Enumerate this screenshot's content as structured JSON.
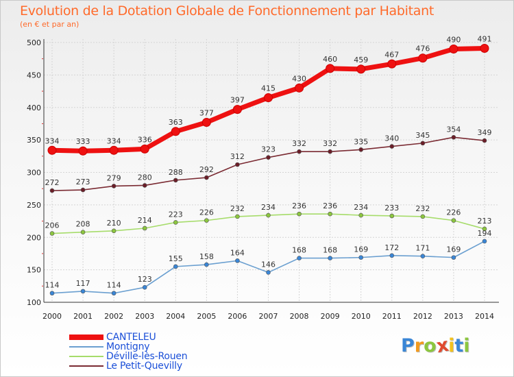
{
  "title": "Evolution de la Dotation Globale de Fonctionnement par Habitant",
  "subtitle": "(en € et par an)",
  "brand": {
    "letters": [
      "P",
      "r",
      "o",
      "x",
      "i",
      "t",
      "i"
    ],
    "colors": [
      "#3a86d6",
      "#f29a1e",
      "#8cc63f",
      "#e04a2f",
      "#f2c21e",
      "#3a86d6",
      "#8cc63f"
    ]
  },
  "chart_data": {
    "type": "line",
    "title": "Evolution de la Dotation Globale de Fonctionnement par Habitant",
    "subtitle": "(en € et par an)",
    "xlabel": "",
    "ylabel": "",
    "categories": [
      "2000",
      "2001",
      "2002",
      "2003",
      "2004",
      "2005",
      "2006",
      "2007",
      "2008",
      "2009",
      "2010",
      "2011",
      "2012",
      "2013",
      "2014"
    ],
    "ylim": [
      100,
      500
    ],
    "yticks": [
      100,
      150,
      200,
      250,
      300,
      350,
      400,
      450,
      500
    ],
    "series": [
      {
        "name": "CANTELEU",
        "color": "#ee1111",
        "marker": "#ee1111",
        "values": [
          334,
          333,
          334,
          336,
          363,
          377,
          397,
          415,
          430,
          460,
          459,
          467,
          476,
          490,
          491
        ]
      },
      {
        "name": "Montigny",
        "color": "#6a9fd0",
        "marker": "#3a86d6",
        "values": [
          114,
          117,
          114,
          123,
          155,
          158,
          164,
          146,
          168,
          168,
          169,
          172,
          171,
          169,
          194
        ]
      },
      {
        "name": "Déville-lès-Rouen",
        "color": "#a6dc6a",
        "marker": "#8cc63f",
        "values": [
          206,
          208,
          210,
          214,
          223,
          226,
          232,
          234,
          236,
          236,
          234,
          233,
          232,
          226,
          213
        ]
      },
      {
        "name": "Le Petit-Quevilly",
        "color": "#7a2a32",
        "marker": "#6b1e28",
        "values": [
          272,
          273,
          279,
          280,
          288,
          292,
          312,
          323,
          332,
          332,
          335,
          340,
          345,
          354,
          349
        ]
      }
    ]
  }
}
